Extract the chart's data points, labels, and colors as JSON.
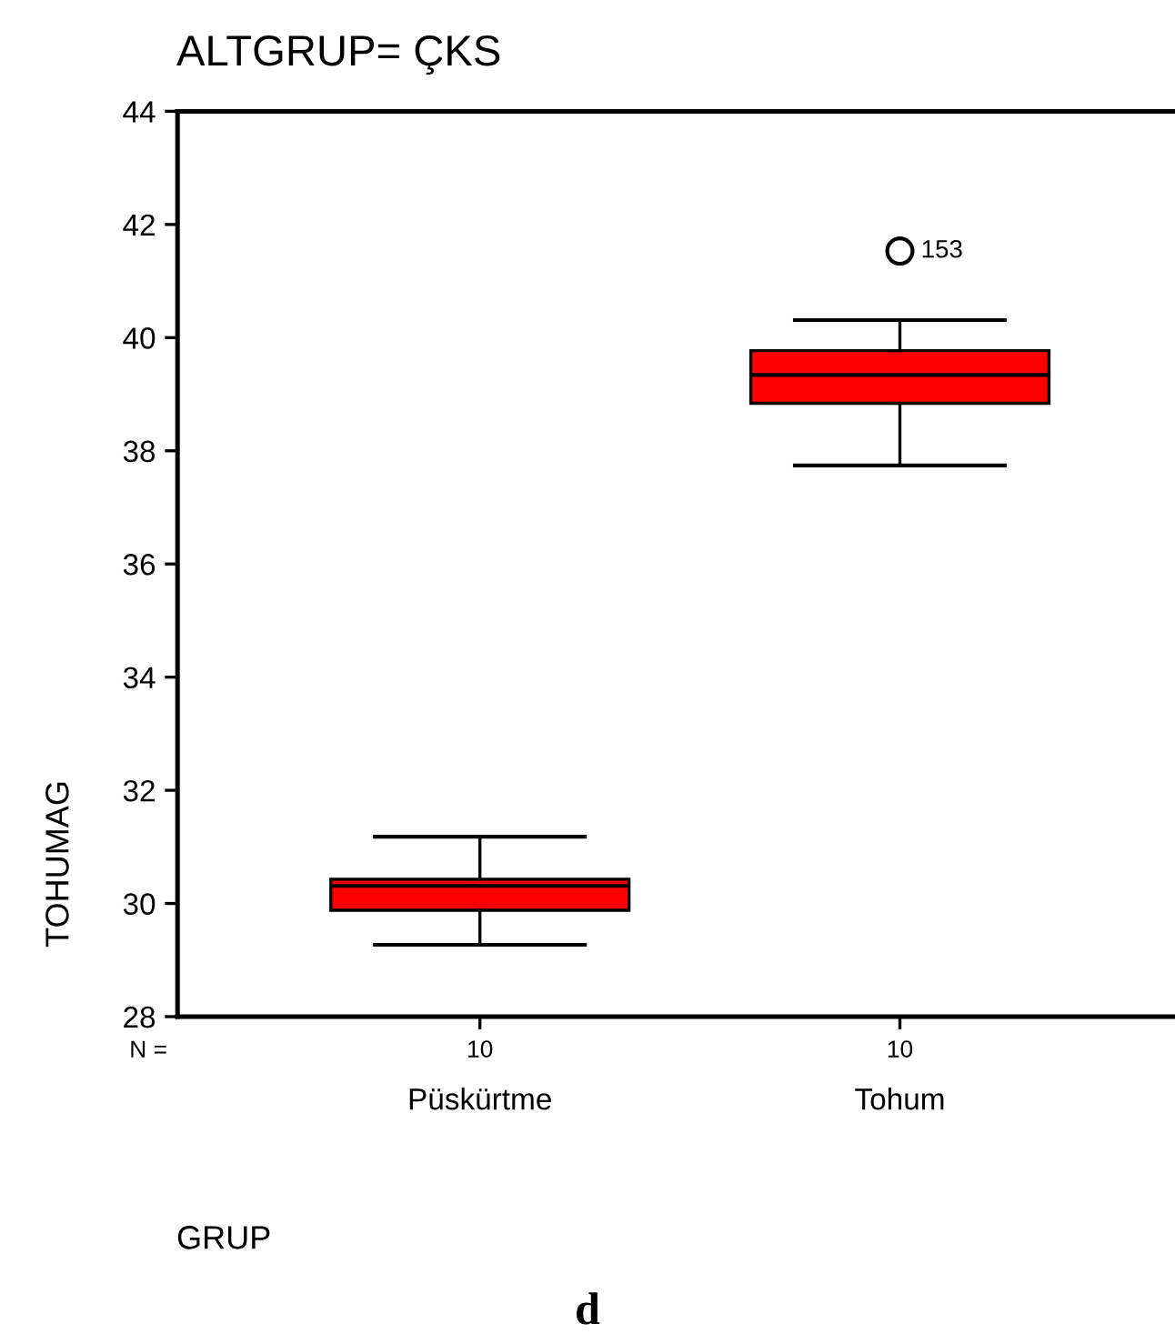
{
  "chart_data": {
    "type": "box",
    "title": "ALTGRUP= ÇKS",
    "xlabel": "GRUP",
    "ylabel": "TOHUMAG",
    "categories": [
      "Püskürtme",
      "Tohum"
    ],
    "boxes": [
      {
        "low": 29.27,
        "q1": 29.88,
        "median": 30.31,
        "q3": 30.43,
        "high": 31.18
      },
      {
        "low": 37.74,
        "q1": 38.84,
        "median": 39.34,
        "q3": 39.77,
        "high": 40.31,
        "outliers": [
          41.53
        ]
      }
    ],
    "color": "#ff0000",
    "ylim": [
      28,
      44
    ],
    "yticks": [
      28,
      30,
      32,
      34,
      36,
      38,
      40,
      42,
      44
    ],
    "annotations": [
      "153",
      "N =",
      "10",
      "10",
      "d"
    ],
    "grid": false
  }
}
